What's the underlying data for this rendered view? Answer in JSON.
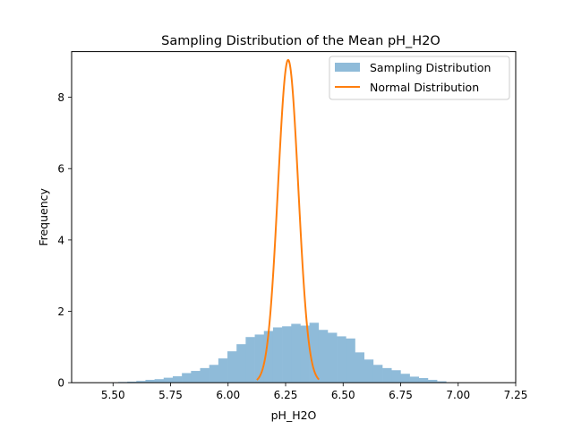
{
  "chart_data": {
    "type": "bar",
    "title": "Sampling Distribution of the Mean pH_H2O",
    "xlabel": "pH_H2O",
    "ylabel": "Frequency",
    "xlim": [
      5.32,
      7.25
    ],
    "ylim": [
      0,
      9.28
    ],
    "xticks": [
      5.5,
      5.75,
      6.0,
      6.25,
      6.5,
      6.75,
      7.0,
      7.25
    ],
    "xtick_labels": [
      "5.50",
      "5.75",
      "6.00",
      "6.25",
      "6.50",
      "6.75",
      "7.00",
      "7.25"
    ],
    "yticks": [
      0,
      2,
      4,
      6,
      8
    ],
    "ytick_labels": [
      "0",
      "2",
      "4",
      "6",
      "8"
    ],
    "grid": false,
    "legend_position": "top-right",
    "series": [
      {
        "name": "Sampling Distribution",
        "kind": "histogram",
        "color": "#8fbbd9",
        "bin_edges": [
          5.522,
          5.5616,
          5.6012,
          5.6408,
          5.6804,
          5.72,
          5.7596,
          5.7992,
          5.8388,
          5.8784,
          5.918,
          5.9576,
          5.9972,
          6.0368,
          6.0764,
          6.116,
          6.1556,
          6.1952,
          6.2348,
          6.2744,
          6.314,
          6.3536,
          6.3932,
          6.4328,
          6.4724,
          6.512,
          6.5516,
          6.5912,
          6.6308,
          6.6704,
          6.71,
          6.7496,
          6.7892,
          6.8288,
          6.8684,
          6.908,
          6.9476
        ],
        "values": [
          0.02,
          0.03,
          0.05,
          0.08,
          0.1,
          0.14,
          0.18,
          0.27,
          0.33,
          0.41,
          0.5,
          0.68,
          0.88,
          1.08,
          1.28,
          1.35,
          1.45,
          1.55,
          1.58,
          1.65,
          1.6,
          1.68,
          1.48,
          1.4,
          1.3,
          1.24,
          0.85,
          0.65,
          0.5,
          0.41,
          0.35,
          0.25,
          0.17,
          0.13,
          0.08,
          0.04
        ]
      },
      {
        "name": "Normal Distribution",
        "kind": "line",
        "color": "#ff7f0e",
        "mean": 6.261,
        "std": 0.0441,
        "x_range": [
          6.125,
          6.395
        ]
      }
    ]
  }
}
